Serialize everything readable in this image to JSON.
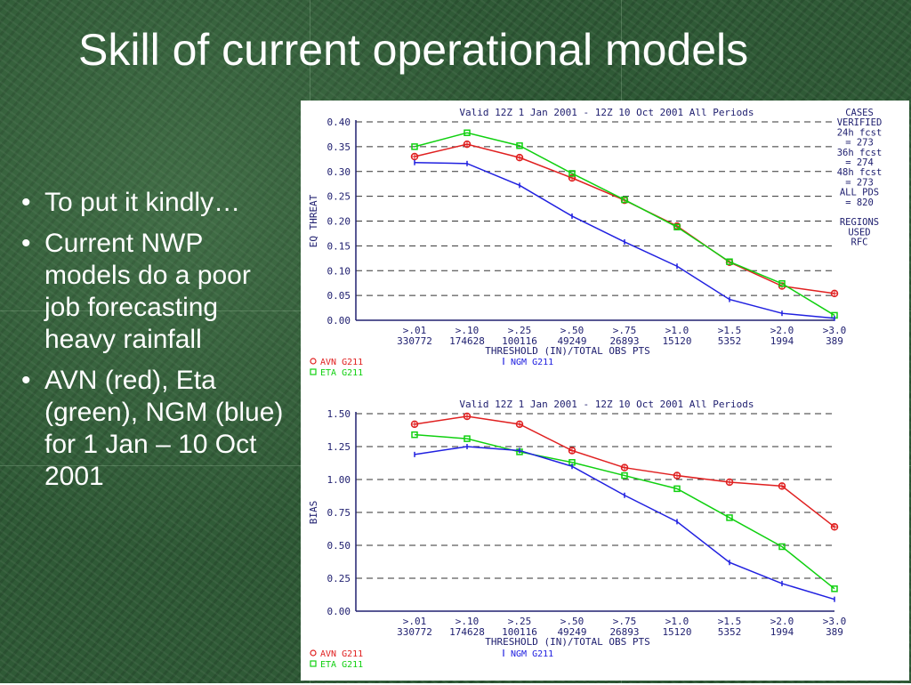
{
  "slide": {
    "title": "Skill of current operational models",
    "bullets": [
      "To put it kindly…",
      "Current NWP models do a poor job forecasting heavy rainfall",
      "AVN (red), Eta (green), NGM (blue) for 1 Jan – 10 Oct 2001"
    ]
  },
  "colors": {
    "avn": "#e02020",
    "eta": "#10d010",
    "ngm": "#2020e0",
    "axis": "#202070"
  },
  "chart_data": [
    {
      "type": "line",
      "title": "Valid 12Z  1 Jan 2001 - 12Z 10 Oct 2001 All Periods",
      "ylabel": "EQ THREAT",
      "xlabel": "THRESHOLD (IN)/TOTAL OBS PTS",
      "categories": [
        ">.01",
        ">.10",
        ">.25",
        ">.50",
        ">.75",
        ">1.0",
        ">1.5",
        ">2.0",
        ">3.0"
      ],
      "obs_counts": [
        "330772",
        "174628",
        "100116",
        "49249",
        "26893",
        "15120",
        "5352",
        "1994",
        "389"
      ],
      "ylim": [
        0,
        0.4
      ],
      "yticks": [
        "0.00",
        "0.05",
        "0.10",
        "0.15",
        "0.20",
        "0.25",
        "0.30",
        "0.35",
        "0.40"
      ],
      "series": [
        {
          "name": "AVN",
          "label": "AVN  G211",
          "color": "#e02020",
          "marker": "circle-plus",
          "values": [
            0.33,
            0.355,
            0.328,
            0.287,
            0.242,
            0.19,
            0.117,
            0.069,
            0.054
          ]
        },
        {
          "name": "ETA",
          "label": "ETA  G211",
          "color": "#10d010",
          "marker": "square",
          "values": [
            0.35,
            0.378,
            0.352,
            0.296,
            0.243,
            0.188,
            0.118,
            0.074,
            0.01
          ]
        },
        {
          "name": "NGM",
          "label": "NGM  G211",
          "color": "#2020e0",
          "marker": "tick",
          "values": [
            0.318,
            0.316,
            0.272,
            0.21,
            0.158,
            0.109,
            0.042,
            0.014,
            0.004
          ]
        }
      ],
      "side_text": [
        "CASES",
        "VERIFIED",
        "24h fcst",
        "= 273",
        "36h fcst",
        "= 274",
        "48h fcst",
        "= 273",
        "ALL PDS",
        "= 820",
        "",
        "REGIONS",
        "USED",
        "RFC"
      ]
    },
    {
      "type": "line",
      "title": "Valid 12Z  1 Jan 2001 - 12Z 10 Oct 2001 All Periods",
      "ylabel": "BIAS",
      "xlabel": "THRESHOLD (IN)/TOTAL OBS PTS",
      "categories": [
        ">.01",
        ">.10",
        ">.25",
        ">.50",
        ">.75",
        ">1.0",
        ">1.5",
        ">2.0",
        ">3.0"
      ],
      "obs_counts": [
        "330772",
        "174628",
        "100116",
        "49249",
        "26893",
        "15120",
        "5352",
        "1994",
        "389"
      ],
      "ylim": [
        0,
        1.5
      ],
      "yticks": [
        "0.00",
        "0.25",
        "0.50",
        "0.75",
        "1.00",
        "1.25",
        "1.50"
      ],
      "series": [
        {
          "name": "AVN",
          "label": "AVN  G211",
          "color": "#e02020",
          "marker": "circle-plus",
          "values": [
            1.42,
            1.48,
            1.42,
            1.22,
            1.09,
            1.03,
            0.98,
            0.95,
            0.64
          ]
        },
        {
          "name": "ETA",
          "label": "ETA  G211",
          "color": "#10d010",
          "marker": "square",
          "values": [
            1.34,
            1.31,
            1.21,
            1.13,
            1.03,
            0.93,
            0.71,
            0.49,
            0.17
          ]
        },
        {
          "name": "NGM",
          "label": "NGM  G211",
          "color": "#2020e0",
          "marker": "tick",
          "values": [
            1.19,
            1.25,
            1.22,
            1.1,
            0.88,
            0.68,
            0.37,
            0.21,
            0.09
          ]
        }
      ]
    }
  ]
}
